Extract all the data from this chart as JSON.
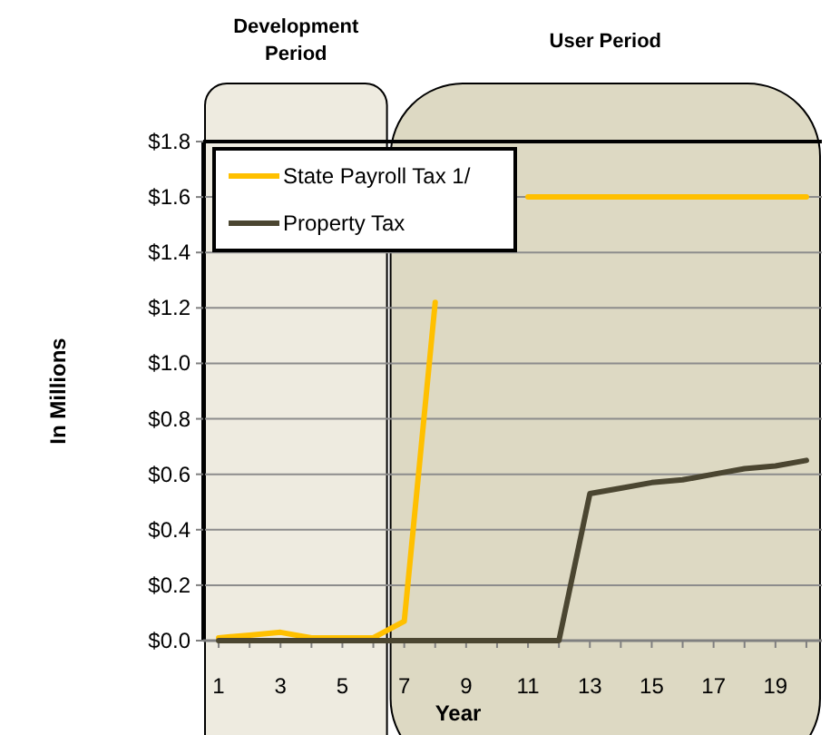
{
  "chart_data": {
    "type": "line",
    "xlabel": "Year",
    "ylabel": "In Millions",
    "x": [
      1,
      2,
      3,
      4,
      5,
      6,
      7,
      8,
      9,
      10,
      11,
      12,
      13,
      14,
      15,
      16,
      17,
      18,
      19,
      20
    ],
    "series": [
      {
        "name": "State Payroll Tax 1/",
        "color": "#ffc000",
        "values": [
          0.01,
          0.02,
          0.03,
          0.01,
          0.01,
          0.01,
          0.07,
          1.22,
          null,
          null,
          1.6,
          1.6,
          1.6,
          1.6,
          1.6,
          1.6,
          1.6,
          1.6,
          1.6,
          1.6
        ]
      },
      {
        "name": "Property Tax",
        "color": "#4b4631",
        "values": [
          0,
          0,
          0,
          0,
          0,
          0,
          0,
          0,
          0,
          0,
          0,
          0,
          0.53,
          0.55,
          0.57,
          0.58,
          0.6,
          0.62,
          0.63,
          0.65
        ]
      }
    ],
    "xlim": [
      0.5,
      20.5
    ],
    "xticks": [
      1,
      3,
      5,
      7,
      9,
      11,
      13,
      15,
      17,
      19
    ],
    "ylim": [
      0,
      1.8
    ],
    "yticks": [
      {
        "value": 0,
        "label": "$0.0"
      },
      {
        "value": 0.2,
        "label": "$0.2"
      },
      {
        "value": 0.4,
        "label": "$0.4"
      },
      {
        "value": 0.6,
        "label": "$0.6"
      },
      {
        "value": 0.8,
        "label": "$0.8"
      },
      {
        "value": 1.0,
        "label": "$1.0"
      },
      {
        "value": 1.2,
        "label": "$1.2"
      },
      {
        "value": 1.4,
        "label": "$1.4"
      },
      {
        "value": 1.6,
        "label": "$1.6"
      },
      {
        "value": 1.8,
        "label": "$1.8"
      }
    ],
    "bands": [
      {
        "axis": "x",
        "from": 0.5,
        "to": 6.5,
        "label": "Development Period",
        "color": "#eeebe0"
      },
      {
        "axis": "x",
        "from": 6.5,
        "to": 20.5,
        "label": "User Period",
        "color": "#ddd9c3"
      }
    ],
    "grid": "y",
    "legend": "top left",
    "marker": "none"
  }
}
